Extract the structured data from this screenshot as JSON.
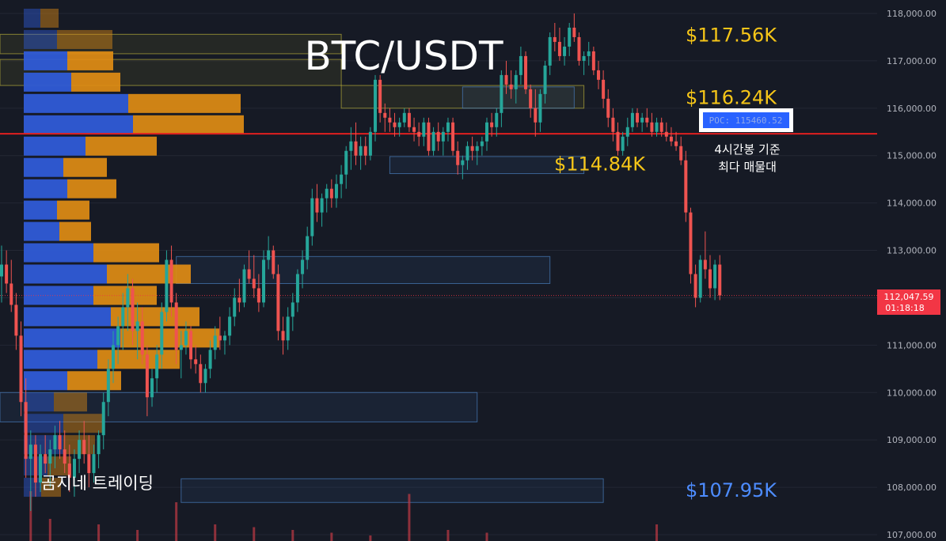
{
  "chart_data": {
    "type": "candlestick",
    "title": "BTC/USDT",
    "ylim": [
      106900,
      118250
    ],
    "y_ticks": [
      107000,
      108000,
      109000,
      110000,
      111000,
      112000,
      113000,
      114000,
      115000,
      116000,
      117000,
      118000
    ],
    "y_tick_labels": [
      "107,000.00",
      "108,000.00",
      "109,000.00",
      "110,000.00",
      "111,000.00",
      "112,000.00",
      "113,000.00",
      "114,000.00",
      "115,000.00",
      "116,000.00",
      "117,000.00",
      "118,000.00"
    ],
    "last_price": {
      "label": "112,047.59",
      "countdown": "01:18:18",
      "value": 112047.59
    },
    "poc": {
      "label": "POC: 115460.52",
      "value": 115460.52,
      "note_line1": "4시간봉 기준",
      "note_line2": "최다 매물대"
    },
    "levels": [
      {
        "label": "$117.56K",
        "value": 117560,
        "color": "#f5c518"
      },
      {
        "label": "$116.24K",
        "value": 116240,
        "color": "#f5c518"
      },
      {
        "label": "$114.84K",
        "value": 114840,
        "color": "#f5c518"
      },
      {
        "label": "$107.95K",
        "value": 107950,
        "color": "#4d8cff"
      }
    ],
    "zones": [
      {
        "top": 117560,
        "bottom": 117150,
        "from_candle": 0,
        "to_candle": 70,
        "kind": "supply"
      },
      {
        "top": 117030,
        "bottom": 116480,
        "from_candle": 0,
        "to_candle": 70,
        "kind": "supply"
      },
      {
        "top": 116480,
        "bottom": 116000,
        "from_candle": 70,
        "to_candle": 120,
        "kind": "supply"
      },
      {
        "top": 116450,
        "bottom": 116000,
        "from_candle": 95,
        "to_candle": 118,
        "kind": "demand"
      },
      {
        "top": 114980,
        "bottom": 114620,
        "from_candle": 80,
        "to_candle": 120,
        "kind": "demand"
      },
      {
        "top": 112870,
        "bottom": 112300,
        "from_candle": 36,
        "to_candle": 113,
        "kind": "demand"
      },
      {
        "top": 110000,
        "bottom": 109380,
        "from_candle": 0,
        "to_candle": 98,
        "kind": "demand"
      },
      {
        "top": 108180,
        "bottom": 107680,
        "from_candle": 37,
        "to_candle": 124,
        "kind": "demand"
      }
    ],
    "volume_profile": [
      {
        "price": 117900,
        "buy": 21,
        "sell": 23
      },
      {
        "price": 117450,
        "buy": 42,
        "sell": 70
      },
      {
        "price": 117000,
        "buy": 55,
        "sell": 58
      },
      {
        "price": 116550,
        "buy": 60,
        "sell": 62
      },
      {
        "price": 116100,
        "buy": 132,
        "sell": 142
      },
      {
        "price": 115650,
        "buy": 138,
        "sell": 140
      },
      {
        "price": 115200,
        "buy": 78,
        "sell": 90
      },
      {
        "price": 114750,
        "buy": 50,
        "sell": 55
      },
      {
        "price": 114300,
        "buy": 55,
        "sell": 62
      },
      {
        "price": 113850,
        "buy": 42,
        "sell": 41
      },
      {
        "price": 113400,
        "buy": 45,
        "sell": 40
      },
      {
        "price": 112950,
        "buy": 88,
        "sell": 83
      },
      {
        "price": 112500,
        "buy": 105,
        "sell": 106
      },
      {
        "price": 112050,
        "buy": 88,
        "sell": 80
      },
      {
        "price": 111600,
        "buy": 110,
        "sell": 112
      },
      {
        "price": 111150,
        "buy": 122,
        "sell": 125
      },
      {
        "price": 110700,
        "buy": 93,
        "sell": 104
      },
      {
        "price": 110250,
        "buy": 55,
        "sell": 68
      },
      {
        "price": 109800,
        "buy": 38,
        "sell": 42
      },
      {
        "price": 109350,
        "buy": 50,
        "sell": 50
      },
      {
        "price": 108900,
        "buy": 50,
        "sell": 40
      },
      {
        "price": 108450,
        "buy": 30,
        "sell": 30
      },
      {
        "price": 108000,
        "buy": 22,
        "sell": 25
      }
    ],
    "candles": [
      {
        "o": 112450,
        "h": 113100,
        "l": 111900,
        "c": 112700
      },
      {
        "o": 112700,
        "h": 113000,
        "l": 112100,
        "c": 112300
      },
      {
        "o": 112300,
        "h": 112800,
        "l": 111700,
        "c": 111850
      },
      {
        "o": 111850,
        "h": 112100,
        "l": 110900,
        "c": 111200
      },
      {
        "o": 111200,
        "h": 111500,
        "l": 109500,
        "c": 109800
      },
      {
        "o": 109800,
        "h": 110300,
        "l": 108200,
        "c": 108600
      },
      {
        "o": 108600,
        "h": 109200,
        "l": 107500,
        "c": 108900
      },
      {
        "o": 108900,
        "h": 109100,
        "l": 107800,
        "c": 108100
      },
      {
        "o": 108100,
        "h": 108900,
        "l": 107900,
        "c": 108700
      },
      {
        "o": 108700,
        "h": 109100,
        "l": 108300,
        "c": 108500
      },
      {
        "o": 108500,
        "h": 109000,
        "l": 108000,
        "c": 108800
      },
      {
        "o": 108800,
        "h": 109300,
        "l": 108400,
        "c": 109100
      },
      {
        "o": 109100,
        "h": 109400,
        "l": 108600,
        "c": 108800
      },
      {
        "o": 108800,
        "h": 109200,
        "l": 108300,
        "c": 108500
      },
      {
        "o": 108500,
        "h": 108900,
        "l": 107900,
        "c": 108200
      },
      {
        "o": 108200,
        "h": 108800,
        "l": 107800,
        "c": 108600
      },
      {
        "o": 108600,
        "h": 109200,
        "l": 108300,
        "c": 109000
      },
      {
        "o": 109000,
        "h": 109400,
        "l": 108500,
        "c": 108700
      },
      {
        "o": 108700,
        "h": 109100,
        "l": 108000,
        "c": 108300
      },
      {
        "o": 108300,
        "h": 108900,
        "l": 108100,
        "c": 108700
      },
      {
        "o": 108700,
        "h": 109200,
        "l": 108400,
        "c": 109100
      },
      {
        "o": 109100,
        "h": 110000,
        "l": 108800,
        "c": 109800
      },
      {
        "o": 109800,
        "h": 110700,
        "l": 109500,
        "c": 110500
      },
      {
        "o": 110500,
        "h": 111300,
        "l": 110200,
        "c": 111000
      },
      {
        "o": 111000,
        "h": 111600,
        "l": 110600,
        "c": 111400
      },
      {
        "o": 111400,
        "h": 112100,
        "l": 110900,
        "c": 111800
      },
      {
        "o": 111800,
        "h": 112500,
        "l": 111300,
        "c": 112200
      },
      {
        "o": 112200,
        "h": 112400,
        "l": 111000,
        "c": 111300
      },
      {
        "o": 111300,
        "h": 111900,
        "l": 110700,
        "c": 111500
      },
      {
        "o": 111500,
        "h": 111800,
        "l": 110600,
        "c": 110800
      },
      {
        "o": 110800,
        "h": 111000,
        "l": 109500,
        "c": 109900
      },
      {
        "o": 109900,
        "h": 110500,
        "l": 109700,
        "c": 110300
      },
      {
        "o": 110300,
        "h": 111000,
        "l": 110000,
        "c": 110800
      },
      {
        "o": 110800,
        "h": 111900,
        "l": 110500,
        "c": 111700
      },
      {
        "o": 111700,
        "h": 113000,
        "l": 111500,
        "c": 112800
      },
      {
        "o": 112800,
        "h": 113100,
        "l": 111600,
        "c": 111900
      },
      {
        "o": 111900,
        "h": 112100,
        "l": 110600,
        "c": 110900
      },
      {
        "o": 110900,
        "h": 111300,
        "l": 110300,
        "c": 111000
      },
      {
        "o": 111000,
        "h": 111500,
        "l": 110800,
        "c": 111300
      },
      {
        "o": 111300,
        "h": 111400,
        "l": 110500,
        "c": 110700
      },
      {
        "o": 110700,
        "h": 111000,
        "l": 110400,
        "c": 110600
      },
      {
        "o": 110600,
        "h": 110800,
        "l": 110000,
        "c": 110200
      },
      {
        "o": 110200,
        "h": 110600,
        "l": 110000,
        "c": 110500
      },
      {
        "o": 110500,
        "h": 111100,
        "l": 110300,
        "c": 110900
      },
      {
        "o": 110900,
        "h": 111400,
        "l": 110700,
        "c": 111200
      },
      {
        "o": 111200,
        "h": 111600,
        "l": 110900,
        "c": 111100
      },
      {
        "o": 111100,
        "h": 111300,
        "l": 110800,
        "c": 111200
      },
      {
        "o": 111200,
        "h": 111800,
        "l": 111000,
        "c": 111600
      },
      {
        "o": 111600,
        "h": 112200,
        "l": 111400,
        "c": 112000
      },
      {
        "o": 112000,
        "h": 112400,
        "l": 111700,
        "c": 111900
      },
      {
        "o": 111900,
        "h": 112700,
        "l": 111800,
        "c": 112600
      },
      {
        "o": 112600,
        "h": 113000,
        "l": 112300,
        "c": 112400
      },
      {
        "o": 112400,
        "h": 112900,
        "l": 112000,
        "c": 112200
      },
      {
        "o": 112200,
        "h": 112500,
        "l": 111700,
        "c": 111900
      },
      {
        "o": 111900,
        "h": 113000,
        "l": 111800,
        "c": 112800
      },
      {
        "o": 112800,
        "h": 113300,
        "l": 112600,
        "c": 113000
      },
      {
        "o": 113000,
        "h": 113100,
        "l": 112400,
        "c": 112500
      },
      {
        "o": 112500,
        "h": 112700,
        "l": 111100,
        "c": 111300
      },
      {
        "o": 111300,
        "h": 111600,
        "l": 110800,
        "c": 111100
      },
      {
        "o": 111100,
        "h": 111800,
        "l": 110900,
        "c": 111600
      },
      {
        "o": 111600,
        "h": 112100,
        "l": 111300,
        "c": 111900
      },
      {
        "o": 111900,
        "h": 112600,
        "l": 111700,
        "c": 112500
      },
      {
        "o": 112500,
        "h": 113000,
        "l": 112200,
        "c": 112800
      },
      {
        "o": 112800,
        "h": 113500,
        "l": 112600,
        "c": 113300
      },
      {
        "o": 113300,
        "h": 114300,
        "l": 113100,
        "c": 114100
      },
      {
        "o": 114100,
        "h": 114400,
        "l": 113600,
        "c": 113800
      },
      {
        "o": 113800,
        "h": 114200,
        "l": 113500,
        "c": 114100
      },
      {
        "o": 114100,
        "h": 114400,
        "l": 113800,
        "c": 114300
      },
      {
        "o": 114300,
        "h": 114500,
        "l": 113900,
        "c": 114100
      },
      {
        "o": 114100,
        "h": 114600,
        "l": 113900,
        "c": 114400
      },
      {
        "o": 114400,
        "h": 114800,
        "l": 114100,
        "c": 114600
      },
      {
        "o": 114600,
        "h": 115200,
        "l": 114300,
        "c": 115100
      },
      {
        "o": 115100,
        "h": 115600,
        "l": 114700,
        "c": 115300
      },
      {
        "o": 115300,
        "h": 115700,
        "l": 114800,
        "c": 115000
      },
      {
        "o": 115000,
        "h": 115400,
        "l": 114700,
        "c": 115200
      },
      {
        "o": 115200,
        "h": 115400,
        "l": 114800,
        "c": 115000
      },
      {
        "o": 115000,
        "h": 115600,
        "l": 114900,
        "c": 115500
      },
      {
        "o": 115500,
        "h": 116700,
        "l": 115300,
        "c": 116600
      },
      {
        "o": 116600,
        "h": 116700,
        "l": 115700,
        "c": 115900
      },
      {
        "o": 115900,
        "h": 116100,
        "l": 115500,
        "c": 115800
      },
      {
        "o": 115800,
        "h": 116000,
        "l": 115500,
        "c": 115700
      },
      {
        "o": 115700,
        "h": 115900,
        "l": 115400,
        "c": 115600
      },
      {
        "o": 115600,
        "h": 115800,
        "l": 115400,
        "c": 115700
      },
      {
        "o": 115700,
        "h": 116000,
        "l": 115600,
        "c": 115900
      },
      {
        "o": 115900,
        "h": 116000,
        "l": 115500,
        "c": 115600
      },
      {
        "o": 115600,
        "h": 115800,
        "l": 115300,
        "c": 115500
      },
      {
        "o": 115500,
        "h": 115700,
        "l": 115200,
        "c": 115400
      },
      {
        "o": 115400,
        "h": 115800,
        "l": 115200,
        "c": 115700
      },
      {
        "o": 115700,
        "h": 115800,
        "l": 115000,
        "c": 115100
      },
      {
        "o": 115100,
        "h": 115600,
        "l": 115000,
        "c": 115500
      },
      {
        "o": 115500,
        "h": 115700,
        "l": 115100,
        "c": 115300
      },
      {
        "o": 115300,
        "h": 115600,
        "l": 115000,
        "c": 115500
      },
      {
        "o": 115500,
        "h": 115800,
        "l": 115300,
        "c": 115700
      },
      {
        "o": 115700,
        "h": 115800,
        "l": 115000,
        "c": 115100
      },
      {
        "o": 115100,
        "h": 115300,
        "l": 114600,
        "c": 114800
      },
      {
        "o": 114800,
        "h": 115000,
        "l": 114500,
        "c": 114900
      },
      {
        "o": 114900,
        "h": 115300,
        "l": 114700,
        "c": 115200
      },
      {
        "o": 115200,
        "h": 115400,
        "l": 114900,
        "c": 115100
      },
      {
        "o": 115100,
        "h": 115300,
        "l": 114800,
        "c": 115200
      },
      {
        "o": 115200,
        "h": 115400,
        "l": 115000,
        "c": 115300
      },
      {
        "o": 115300,
        "h": 115800,
        "l": 115100,
        "c": 115700
      },
      {
        "o": 115700,
        "h": 115900,
        "l": 115400,
        "c": 115600
      },
      {
        "o": 115600,
        "h": 116000,
        "l": 115400,
        "c": 115900
      },
      {
        "o": 115900,
        "h": 116800,
        "l": 115600,
        "c": 116700
      },
      {
        "o": 116700,
        "h": 117000,
        "l": 116300,
        "c": 116500
      },
      {
        "o": 116500,
        "h": 116800,
        "l": 116200,
        "c": 116400
      },
      {
        "o": 116400,
        "h": 116800,
        "l": 116100,
        "c": 116700
      },
      {
        "o": 116700,
        "h": 117300,
        "l": 116500,
        "c": 117100
      },
      {
        "o": 117100,
        "h": 117200,
        "l": 116300,
        "c": 116400
      },
      {
        "o": 116400,
        "h": 116500,
        "l": 115800,
        "c": 116000
      },
      {
        "o": 116000,
        "h": 116400,
        "l": 115400,
        "c": 115700
      },
      {
        "o": 115700,
        "h": 116400,
        "l": 115500,
        "c": 116300
      },
      {
        "o": 116300,
        "h": 117000,
        "l": 116100,
        "c": 116900
      },
      {
        "o": 116900,
        "h": 117600,
        "l": 116700,
        "c": 117500
      },
      {
        "o": 117500,
        "h": 117800,
        "l": 117200,
        "c": 117400
      },
      {
        "o": 117400,
        "h": 117700,
        "l": 117000,
        "c": 117100
      },
      {
        "o": 117100,
        "h": 117500,
        "l": 116900,
        "c": 117300
      },
      {
        "o": 117300,
        "h": 117800,
        "l": 117100,
        "c": 117700
      },
      {
        "o": 117700,
        "h": 118000,
        "l": 117400,
        "c": 117500
      },
      {
        "o": 117500,
        "h": 117600,
        "l": 116900,
        "c": 117000
      },
      {
        "o": 117000,
        "h": 117200,
        "l": 116700,
        "c": 117100
      },
      {
        "o": 117100,
        "h": 117400,
        "l": 116900,
        "c": 117200
      },
      {
        "o": 117200,
        "h": 117300,
        "l": 116700,
        "c": 116800
      },
      {
        "o": 116800,
        "h": 117000,
        "l": 116400,
        "c": 116600
      },
      {
        "o": 116600,
        "h": 116800,
        "l": 116000,
        "c": 116200
      },
      {
        "o": 116200,
        "h": 116400,
        "l": 115600,
        "c": 115800
      },
      {
        "o": 115800,
        "h": 116000,
        "l": 115300,
        "c": 115500
      },
      {
        "o": 115500,
        "h": 115700,
        "l": 115000,
        "c": 115100
      },
      {
        "o": 115100,
        "h": 115500,
        "l": 115000,
        "c": 115400
      },
      {
        "o": 115400,
        "h": 115800,
        "l": 115200,
        "c": 115600
      },
      {
        "o": 115600,
        "h": 116000,
        "l": 115500,
        "c": 115900
      },
      {
        "o": 115900,
        "h": 116000,
        "l": 115600,
        "c": 115700
      },
      {
        "o": 115700,
        "h": 115900,
        "l": 115500,
        "c": 115800
      },
      {
        "o": 115800,
        "h": 116000,
        "l": 115600,
        "c": 115700
      },
      {
        "o": 115700,
        "h": 115900,
        "l": 115400,
        "c": 115500
      },
      {
        "o": 115500,
        "h": 115800,
        "l": 115400,
        "c": 115700
      },
      {
        "o": 115700,
        "h": 115800,
        "l": 115400,
        "c": 115500
      },
      {
        "o": 115500,
        "h": 115700,
        "l": 115300,
        "c": 115400
      },
      {
        "o": 115400,
        "h": 115600,
        "l": 115200,
        "c": 115300
      },
      {
        "o": 115300,
        "h": 115500,
        "l": 115100,
        "c": 115200
      },
      {
        "o": 115200,
        "h": 115400,
        "l": 114800,
        "c": 114900
      },
      {
        "o": 114900,
        "h": 115100,
        "l": 113600,
        "c": 113800
      },
      {
        "o": 113800,
        "h": 113900,
        "l": 112300,
        "c": 112500
      },
      {
        "o": 112500,
        "h": 112700,
        "l": 111800,
        "c": 112000
      },
      {
        "o": 112000,
        "h": 112900,
        "l": 111900,
        "c": 112800
      },
      {
        "o": 112800,
        "h": 113400,
        "l": 112400,
        "c": 112600
      },
      {
        "o": 112600,
        "h": 112900,
        "l": 112000,
        "c": 112200
      },
      {
        "o": 112200,
        "h": 112800,
        "l": 111950,
        "c": 112700
      },
      {
        "o": 112700,
        "h": 112900,
        "l": 111950,
        "c": 112050
      }
    ],
    "volume": [
      0.9,
      0.4,
      0.3,
      0.2,
      0.7,
      0.3,
      0.25,
      0.2,
      0.15,
      0.1,
      0.85,
      0.2,
      0.15,
      0.3
    ]
  },
  "watermark": "곰지네 트레이딩"
}
